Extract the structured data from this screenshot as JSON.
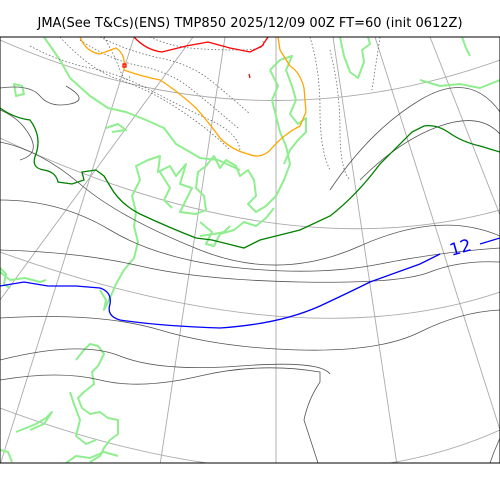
{
  "title": "JMA(See T&Cs)(ENS) TMP850 2025/12/09 00Z FT=60 (init 0612Z)",
  "isotherm_label": "12",
  "colors": {
    "coastline": "#90ee90",
    "graticule": "#aaaaaa",
    "contour_thin": "#555555",
    "contour_dotted": "#666666",
    "isotherm_blue": "#0000ff",
    "isotherm_green": "#008000",
    "isotherm_orange": "#ffa500",
    "isotherm_red": "#ff0000",
    "frame": "#000000"
  }
}
